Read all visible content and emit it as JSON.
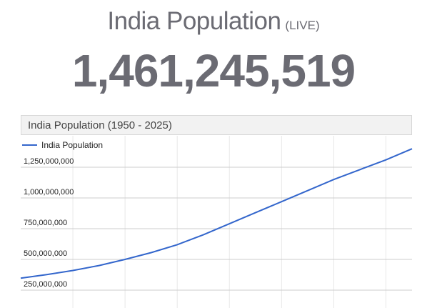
{
  "page": {
    "title": "India Population",
    "title_suffix": "(LIVE)",
    "live_counter": "1,461,245,519"
  },
  "chart_header": "India Population (1950 - 2025)",
  "chart_data": {
    "type": "line",
    "title": "India Population (1950 - 2025)",
    "xlabel": "",
    "ylabel": "",
    "legend": {
      "placement": "top-left",
      "entries": [
        "India Population"
      ]
    },
    "grid": true,
    "xlim": [
      1950,
      2025
    ],
    "ylim": [
      250000000,
      1500000000
    ],
    "y_ticks": [
      {
        "value": 250000000,
        "label": "250,000,000"
      },
      {
        "value": 500000000,
        "label": "500,000,000"
      },
      {
        "value": 750000000,
        "label": "750,000,000"
      },
      {
        "value": 1000000000,
        "label": "1,000,000,000"
      },
      {
        "value": 1250000000,
        "label": "1,250,000,000"
      }
    ],
    "series": [
      {
        "name": "India Population",
        "color": "#3366cc",
        "x": [
          1950,
          1955,
          1960,
          1965,
          1970,
          1975,
          1980,
          1985,
          1990,
          1995,
          2000,
          2005,
          2010,
          2015,
          2020,
          2025
        ],
        "values": [
          347000000,
          376000000,
          410000000,
          450000000,
          500000000,
          555000000,
          620000000,
          700000000,
          790000000,
          880000000,
          970000000,
          1060000000,
          1150000000,
          1230000000,
          1310000000,
          1400000000
        ]
      }
    ]
  }
}
